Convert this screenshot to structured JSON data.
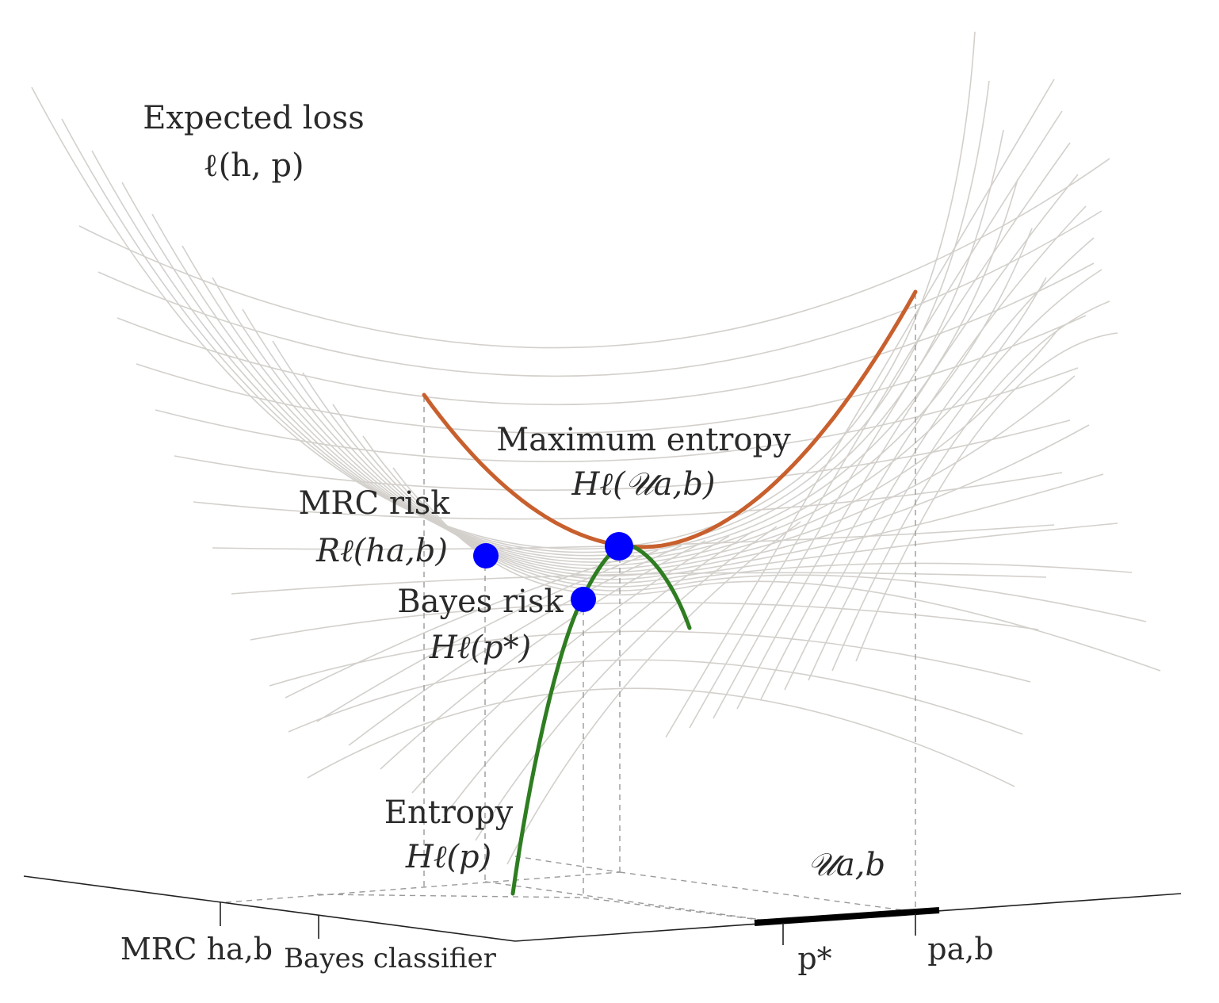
{
  "labels": {
    "expected_loss_title": "Expected loss",
    "expected_loss_formula": "ℓ(h, p)",
    "max_entropy_title": "Maximum entropy",
    "max_entropy_formula": "Hℓ(𝒰a,b)",
    "mrc_risk_title": "MRC risk",
    "mrc_risk_formula": "Rℓ(ha,b)",
    "bayes_risk_title": "Bayes risk",
    "bayes_risk_formula": "Hℓ(p*)",
    "entropy_title": "Entropy",
    "entropy_formula": "Hℓ(p)",
    "uncertainty_set": "𝒰a,b"
  },
  "axes": {
    "classifier_ticks": [
      "MRC ha,b",
      "Bayes classifier"
    ],
    "distribution_ticks": [
      "p*",
      "pa,b"
    ]
  },
  "colors": {
    "worst_case_curve": "#c8602e",
    "entropy_curve": "#2e7d21",
    "points": "#0000ff",
    "mesh": "#d3d0cc"
  }
}
